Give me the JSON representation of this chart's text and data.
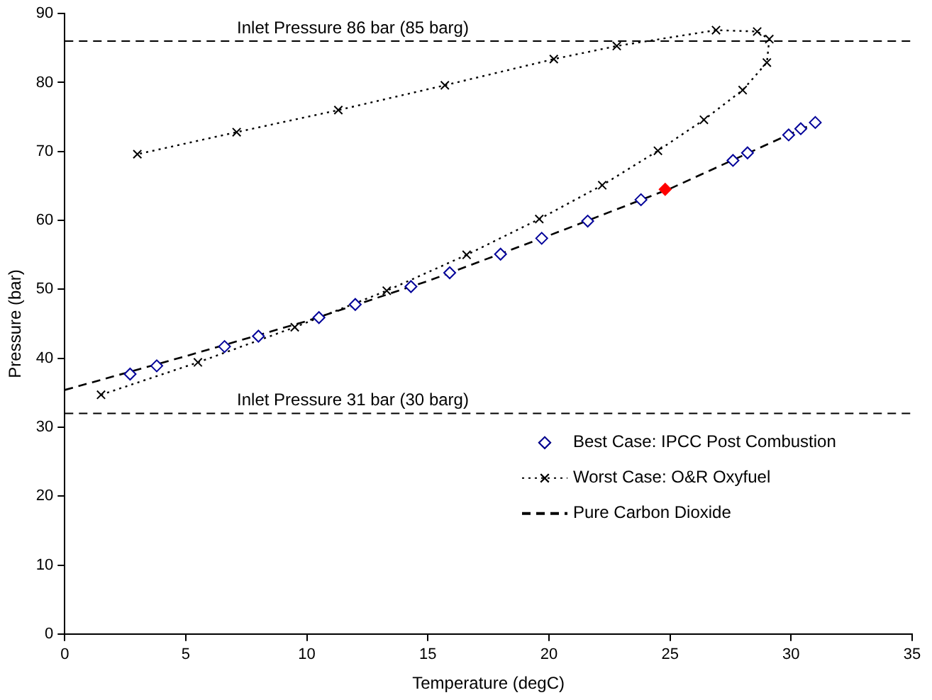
{
  "chart_data": {
    "type": "scatter",
    "xlabel": "Temperature (degC)",
    "ylabel": "Pressure (bar)",
    "xlim": [
      0,
      35
    ],
    "xticks": [
      0,
      5,
      10,
      15,
      20,
      25,
      30,
      35
    ],
    "ylim": [
      0,
      90
    ],
    "yticks": [
      0,
      10,
      20,
      30,
      40,
      50,
      60,
      70,
      80,
      90
    ],
    "grid": false,
    "legend": "bottom right",
    "series": [
      {
        "name": "Best Case: IPCC Post Combustion",
        "type": "scatter",
        "marker": "diamond",
        "color": "#000099",
        "colors": [
          "#000099",
          "#000099",
          "#000099",
          "#000099",
          "#000099",
          "#000099",
          "#000099",
          "#000099",
          "#000099",
          "#000099",
          "#000099",
          "#000099",
          "#ff0000",
          "#000099",
          "#000099",
          "#000099",
          "#000099",
          "#000099",
          "#000099",
          "#000099"
        ],
        "x": [
          2.7,
          3.8,
          6.6,
          8.0,
          10.5,
          12.0,
          14.3,
          15.9,
          18.0,
          19.7,
          21.6,
          23.8,
          24.8,
          27.6,
          28.2,
          29.9,
          30.4,
          30.8,
          30.9,
          31.0
        ],
        "values": [
          37.7,
          38.9,
          41.7,
          43.2,
          45.9,
          47.8,
          50.4,
          52.4,
          55.1,
          57.4,
          59.9,
          63.0,
          64.5,
          68.7,
          69.8,
          72.4,
          73.3,
          null,
          null,
          74.2
        ]
      },
      {
        "name": "Worst Case: O&R Oxyfuel",
        "type": "line",
        "marker": "cross",
        "line_style": "dotted",
        "color": "#000000",
        "x": [
          1.5,
          5.5,
          9.5,
          13.3,
          16.6,
          19.6,
          22.2,
          24.5,
          26.4,
          28.0,
          29.0,
          29.1,
          28.6,
          26.9,
          22.8,
          20.2,
          15.7,
          11.3,
          7.1,
          3.0
        ],
        "values": [
          34.7,
          39.4,
          44.5,
          49.8,
          55.0,
          60.2,
          65.1,
          70.1,
          74.6,
          78.9,
          82.9,
          86.3,
          87.4,
          87.6,
          85.3,
          83.4,
          79.6,
          76.0,
          72.8,
          69.6
        ]
      },
      {
        "name": "Pure Carbon Dioxide",
        "type": "line",
        "marker": "none",
        "line_style": "dashed",
        "color": "#000000",
        "x": [
          0,
          5,
          10,
          15,
          20,
          25,
          30,
          31.0
        ],
        "values": [
          35.4,
          40.3,
          45.4,
          51.2,
          57.8,
          64.6,
          72.6,
          74.1
        ]
      }
    ],
    "ref_lines": [
      {
        "axis": "y",
        "value": 86,
        "label": "Inlet Pressure 86 bar (85 barg)",
        "color": "#000000",
        "line_style": "dashed"
      },
      {
        "axis": "y",
        "value": 32,
        "label": "Inlet Pressure 31 bar (30 barg)",
        "color": "#000000",
        "line_style": "dashed"
      }
    ]
  }
}
